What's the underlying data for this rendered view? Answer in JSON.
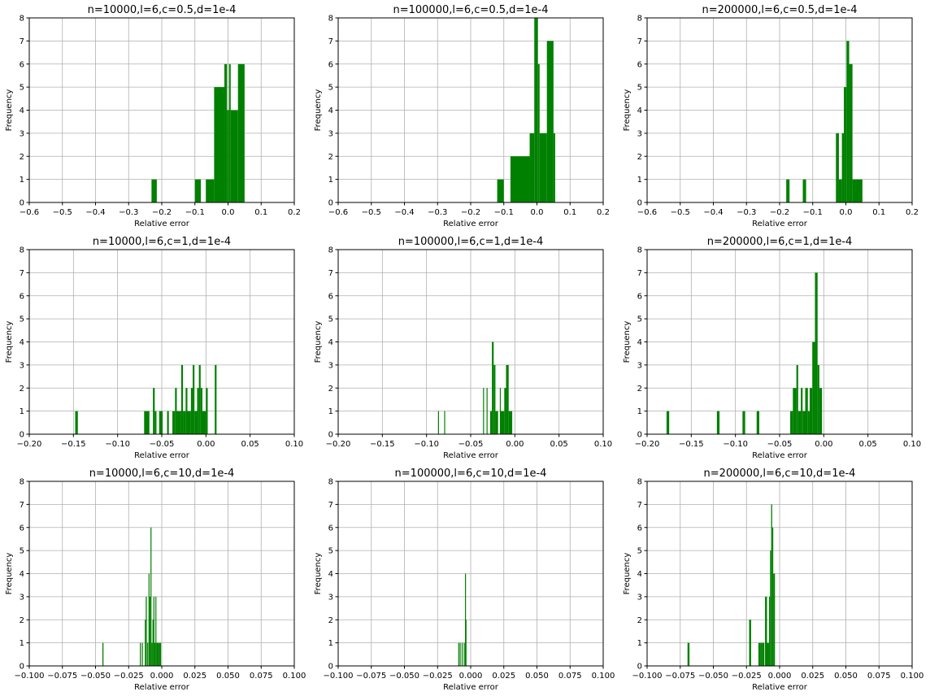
{
  "colors": {
    "bar": "#008000",
    "grid": "#b0b0b0",
    "axis": "#000000"
  },
  "chart_data": [
    {
      "type": "bar",
      "title": "n=10000,l=6,c=0.5,d=1e-4",
      "xlabel": "Relative error",
      "ylabel": "Frequency",
      "xlim": [
        -0.6,
        0.2
      ],
      "ylim": [
        0,
        8
      ],
      "xticks": [
        -0.6,
        -0.5,
        -0.4,
        -0.3,
        -0.2,
        -0.1,
        0.0,
        0.1,
        0.2
      ],
      "xtick_labels": [
        "−0.6",
        "−0.5",
        "−0.4",
        "−0.3",
        "−0.2",
        "−0.1",
        "0.0",
        "0.1",
        "0.2"
      ],
      "yticks": [
        0,
        1,
        2,
        3,
        4,
        5,
        6,
        7,
        8
      ],
      "ytick_labels": [
        "0",
        "1",
        "2",
        "3",
        "4",
        "5",
        "6",
        "7",
        "8"
      ],
      "grid": true,
      "bins": [
        [
          -0.231,
          -0.215,
          1
        ],
        [
          -0.1,
          -0.082,
          1
        ],
        [
          -0.067,
          -0.042,
          1
        ],
        [
          -0.042,
          -0.011,
          5
        ],
        [
          -0.011,
          -0.003,
          6
        ],
        [
          -0.003,
          0.003,
          4
        ],
        [
          0.003,
          0.008,
          6
        ],
        [
          0.008,
          0.03,
          4
        ],
        [
          0.03,
          0.05,
          6
        ]
      ]
    },
    {
      "type": "bar",
      "title": "n=100000,l=6,c=0.5,d=1e-4",
      "xlabel": "Relative error",
      "ylabel": "Frequency",
      "xlim": [
        -0.6,
        0.2
      ],
      "ylim": [
        0,
        8
      ],
      "xticks": [
        -0.6,
        -0.5,
        -0.4,
        -0.3,
        -0.2,
        -0.1,
        0.0,
        0.1,
        0.2
      ],
      "xtick_labels": [
        "−0.6",
        "−0.5",
        "−0.4",
        "−0.3",
        "−0.2",
        "−0.1",
        "0.0",
        "0.1",
        "0.2"
      ],
      "yticks": [
        0,
        1,
        2,
        3,
        4,
        5,
        6,
        7,
        8
      ],
      "ytick_labels": [
        "0",
        "1",
        "2",
        "3",
        "4",
        "5",
        "6",
        "7",
        "8"
      ],
      "grid": true,
      "bins": [
        [
          -0.12,
          -0.1,
          1
        ],
        [
          -0.08,
          -0.022,
          2
        ],
        [
          -0.022,
          -0.008,
          3
        ],
        [
          -0.008,
          0.003,
          8
        ],
        [
          0.003,
          0.008,
          6
        ],
        [
          0.008,
          0.03,
          3
        ],
        [
          0.03,
          0.05,
          7
        ],
        [
          0.05,
          0.055,
          3
        ]
      ]
    },
    {
      "type": "bar",
      "title": "n=200000,l=6,c=0.5,d=1e-4",
      "xlabel": "Relative error",
      "ylabel": "Frequency",
      "xlim": [
        -0.6,
        0.2
      ],
      "ylim": [
        0,
        8
      ],
      "xticks": [
        -0.6,
        -0.5,
        -0.4,
        -0.3,
        -0.2,
        -0.1,
        0.0,
        0.1,
        0.2
      ],
      "xtick_labels": [
        "−0.6",
        "−0.5",
        "−0.4",
        "−0.3",
        "−0.2",
        "−0.1",
        "0.0",
        "0.1",
        "0.2"
      ],
      "yticks": [
        0,
        1,
        2,
        3,
        4,
        5,
        6,
        7,
        8
      ],
      "ytick_labels": [
        "0",
        "1",
        "2",
        "3",
        "4",
        "5",
        "6",
        "7",
        "8"
      ],
      "grid": true,
      "bins": [
        [
          -0.18,
          -0.17,
          1
        ],
        [
          -0.13,
          -0.12,
          1
        ],
        [
          -0.03,
          -0.021,
          3
        ],
        [
          -0.021,
          -0.012,
          1
        ],
        [
          -0.012,
          -0.006,
          3
        ],
        [
          -0.006,
          0.002,
          5
        ],
        [
          0.002,
          0.01,
          7
        ],
        [
          0.01,
          0.02,
          6
        ],
        [
          0.02,
          0.05,
          1
        ]
      ]
    },
    {
      "type": "bar",
      "title": "n=10000,l=6,c=1,d=1e-4",
      "xlabel": "Relative error",
      "ylabel": "Frequency",
      "xlim": [
        -0.2,
        0.1
      ],
      "ylim": [
        0,
        8
      ],
      "xticks": [
        -0.2,
        -0.15,
        -0.1,
        -0.05,
        0.0,
        0.05,
        0.1
      ],
      "xtick_labels": [
        "−0.20",
        "−0.15",
        "−0.10",
        "−0.05",
        "0.00",
        "0.05",
        "0.10"
      ],
      "yticks": [
        0,
        1,
        2,
        3,
        4,
        5,
        6,
        7,
        8
      ],
      "ytick_labels": [
        "0",
        "1",
        "2",
        "3",
        "4",
        "5",
        "6",
        "7",
        "8"
      ],
      "grid": true,
      "bins": [
        [
          -0.148,
          -0.145,
          1
        ],
        [
          -0.07,
          -0.064,
          1
        ],
        [
          -0.06,
          -0.058,
          2
        ],
        [
          -0.058,
          -0.056,
          1
        ],
        [
          -0.053,
          -0.049,
          1
        ],
        [
          -0.044,
          -0.042,
          1
        ],
        [
          -0.038,
          -0.035,
          1
        ],
        [
          -0.035,
          -0.033,
          2
        ],
        [
          -0.033,
          -0.028,
          1
        ],
        [
          -0.028,
          -0.026,
          3
        ],
        [
          -0.026,
          -0.023,
          1
        ],
        [
          -0.023,
          -0.021,
          2
        ],
        [
          -0.021,
          -0.017,
          1
        ],
        [
          -0.017,
          -0.015,
          2
        ],
        [
          -0.015,
          -0.013,
          3
        ],
        [
          -0.013,
          -0.01,
          1
        ],
        [
          -0.01,
          -0.008,
          2
        ],
        [
          -0.008,
          -0.006,
          3
        ],
        [
          -0.006,
          -0.004,
          2
        ],
        [
          -0.004,
          0.0,
          1
        ],
        [
          0.0,
          0.002,
          2
        ],
        [
          0.01,
          0.012,
          3
        ]
      ]
    },
    {
      "type": "bar",
      "title": "n=100000,l=6,c=1,d=1e-4",
      "xlabel": "Relative error",
      "ylabel": "Frequency",
      "xlim": [
        -0.2,
        0.1
      ],
      "ylim": [
        0,
        8
      ],
      "xticks": [
        -0.2,
        -0.15,
        -0.1,
        -0.05,
        0.0,
        0.05,
        0.1
      ],
      "xtick_labels": [
        "−0.20",
        "−0.15",
        "−0.10",
        "−0.05",
        "0.00",
        "0.05",
        "0.10"
      ],
      "yticks": [
        0,
        1,
        2,
        3,
        4,
        5,
        6,
        7,
        8
      ],
      "ytick_labels": [
        "0",
        "1",
        "2",
        "3",
        "4",
        "5",
        "6",
        "7",
        "8"
      ],
      "grid": true,
      "bins": [
        [
          -0.087,
          -0.086,
          1
        ],
        [
          -0.08,
          -0.079,
          1
        ],
        [
          -0.036,
          -0.035,
          2
        ],
        [
          -0.032,
          -0.031,
          2
        ],
        [
          -0.028,
          -0.026,
          1
        ],
        [
          -0.026,
          -0.024,
          4
        ],
        [
          -0.024,
          -0.022,
          3
        ],
        [
          -0.022,
          -0.019,
          1
        ],
        [
          -0.017,
          -0.016,
          2
        ],
        [
          -0.016,
          -0.012,
          1
        ],
        [
          -0.012,
          -0.01,
          2
        ],
        [
          -0.01,
          -0.007,
          3
        ],
        [
          -0.007,
          -0.003,
          1
        ]
      ]
    },
    {
      "type": "bar",
      "title": "n=200000,l=6,c=1,d=1e-4",
      "xlabel": "Relative error",
      "ylabel": "Frequency",
      "xlim": [
        -0.2,
        0.1
      ],
      "ylim": [
        0,
        8
      ],
      "xticks": [
        -0.2,
        -0.15,
        -0.1,
        -0.05,
        0.0,
        0.05,
        0.1
      ],
      "xtick_labels": [
        "−0.20",
        "−0.15",
        "−0.10",
        "−0.05",
        "0.00",
        "0.05",
        "0.10"
      ],
      "yticks": [
        0,
        1,
        2,
        3,
        4,
        5,
        6,
        7,
        8
      ],
      "ytick_labels": [
        "0",
        "1",
        "2",
        "3",
        "4",
        "5",
        "6",
        "7",
        "8"
      ],
      "grid": true,
      "bins": [
        [
          -0.178,
          -0.175,
          1
        ],
        [
          -0.121,
          -0.118,
          1
        ],
        [
          -0.092,
          -0.089,
          1
        ],
        [
          -0.076,
          -0.073,
          1
        ],
        [
          -0.038,
          -0.035,
          1
        ],
        [
          -0.035,
          -0.031,
          2
        ],
        [
          -0.031,
          -0.029,
          3
        ],
        [
          -0.029,
          -0.026,
          1
        ],
        [
          -0.026,
          -0.024,
          2
        ],
        [
          -0.024,
          -0.021,
          1
        ],
        [
          -0.021,
          -0.018,
          2
        ],
        [
          -0.018,
          -0.016,
          1
        ],
        [
          -0.016,
          -0.013,
          2
        ],
        [
          -0.013,
          -0.01,
          4
        ],
        [
          -0.01,
          -0.007,
          7
        ],
        [
          -0.007,
          -0.005,
          3
        ],
        [
          -0.005,
          -0.002,
          2
        ]
      ]
    },
    {
      "type": "bar",
      "title": "n=10000,l=6,c=10,d=1e-4",
      "xlabel": "Relative error",
      "ylabel": "Frequency",
      "xlim": [
        -0.1,
        0.1
      ],
      "ylim": [
        0,
        8
      ],
      "xticks": [
        -0.1,
        -0.075,
        -0.05,
        -0.025,
        0.0,
        0.025,
        0.05,
        0.075,
        0.1
      ],
      "xtick_labels": [
        "−0.100",
        "−0.075",
        "−0.050",
        "−0.025",
        "0.000",
        "0.025",
        "0.050",
        "0.075",
        "0.100"
      ],
      "yticks": [
        0,
        1,
        2,
        3,
        4,
        5,
        6,
        7,
        8
      ],
      "ytick_labels": [
        "0",
        "1",
        "2",
        "3",
        "4",
        "5",
        "6",
        "7",
        "8"
      ],
      "grid": true,
      "bins": [
        [
          -0.0448,
          -0.044,
          1
        ],
        [
          -0.0165,
          -0.0158,
          1
        ],
        [
          -0.015,
          -0.0143,
          1
        ],
        [
          -0.0128,
          -0.0121,
          2
        ],
        [
          -0.0121,
          -0.0113,
          3
        ],
        [
          -0.011,
          -0.0103,
          1
        ],
        [
          -0.01,
          -0.0093,
          4
        ],
        [
          -0.0093,
          -0.0085,
          3
        ],
        [
          -0.0085,
          -0.0078,
          6
        ],
        [
          -0.0078,
          -0.007,
          1
        ],
        [
          -0.007,
          -0.0063,
          2
        ],
        [
          -0.0063,
          -0.0056,
          3
        ],
        [
          -0.0056,
          -0.0048,
          1
        ],
        [
          -0.0048,
          -0.0041,
          3
        ],
        [
          -0.0041,
          -0.002,
          1
        ],
        [
          -0.002,
          -0.0005,
          1
        ]
      ]
    },
    {
      "type": "bar",
      "title": "n=100000,l=6,c=10,d=1e-4",
      "xlabel": "Relative error",
      "ylabel": "Frequency",
      "xlim": [
        -0.1,
        0.1
      ],
      "ylim": [
        0,
        8
      ],
      "xticks": [
        -0.1,
        -0.075,
        -0.05,
        -0.025,
        0.0,
        0.025,
        0.05,
        0.075,
        0.1
      ],
      "xtick_labels": [
        "−0.100",
        "−0.075",
        "−0.050",
        "−0.025",
        "0.000",
        "0.025",
        "0.050",
        "0.075",
        "0.100"
      ],
      "yticks": [
        0,
        1,
        2,
        3,
        4,
        5,
        6,
        7,
        8
      ],
      "ytick_labels": [
        "0",
        "1",
        "2",
        "3",
        "4",
        "5",
        "6",
        "7",
        "8"
      ],
      "grid": true,
      "bins": [
        [
          -0.0094,
          -0.0088,
          1
        ],
        [
          -0.0083,
          -0.0078,
          1
        ],
        [
          -0.0068,
          -0.0063,
          1
        ],
        [
          -0.0052,
          -0.0048,
          1
        ],
        [
          -0.0043,
          -0.0039,
          4
        ],
        [
          -0.0039,
          -0.0034,
          2
        ]
      ]
    },
    {
      "type": "bar",
      "title": "n=200000,l=6,c=10,d=1e-4",
      "xlabel": "Relative error",
      "ylabel": "Frequency",
      "xlim": [
        -0.1,
        0.1
      ],
      "ylim": [
        0,
        8
      ],
      "xticks": [
        -0.1,
        -0.075,
        -0.05,
        -0.025,
        0.0,
        0.025,
        0.05,
        0.075,
        0.1
      ],
      "xtick_labels": [
        "−0.100",
        "−0.075",
        "−0.050",
        "−0.025",
        "0.000",
        "0.025",
        "0.050",
        "0.075",
        "0.100"
      ],
      "yticks": [
        0,
        1,
        2,
        3,
        4,
        5,
        6,
        7,
        8
      ],
      "ytick_labels": [
        "0",
        "1",
        "2",
        "3",
        "4",
        "5",
        "6",
        "7",
        "8"
      ],
      "grid": true,
      "bins": [
        [
          -0.0695,
          -0.068,
          1
        ],
        [
          -0.023,
          -0.0215,
          2
        ],
        [
          -0.016,
          -0.0145,
          1
        ],
        [
          -0.0145,
          -0.013,
          1
        ],
        [
          -0.013,
          -0.0115,
          1
        ],
        [
          -0.011,
          -0.0095,
          3
        ],
        [
          -0.0095,
          -0.008,
          1
        ],
        [
          -0.008,
          -0.0072,
          3
        ],
        [
          -0.0072,
          -0.0064,
          5
        ],
        [
          -0.0064,
          -0.0056,
          7
        ],
        [
          -0.0056,
          -0.0048,
          6
        ],
        [
          -0.0048,
          -0.0035,
          4
        ]
      ]
    }
  ]
}
